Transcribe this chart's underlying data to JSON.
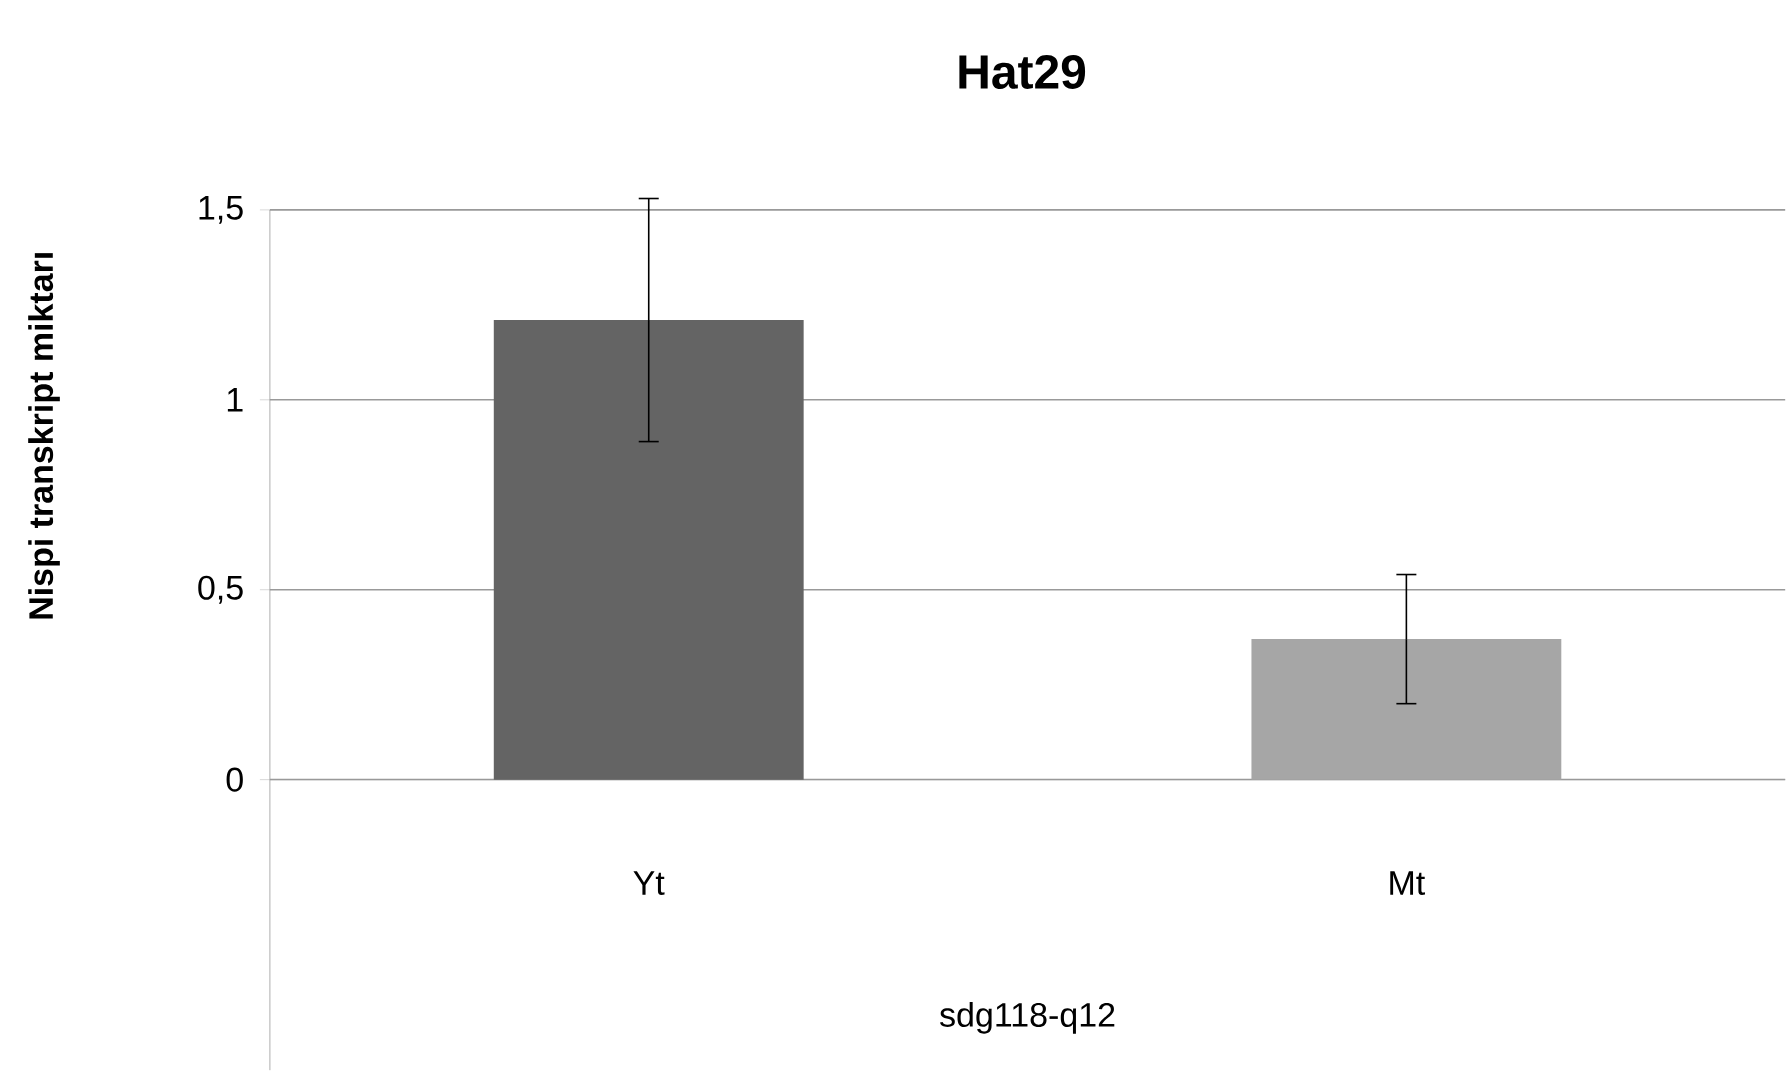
{
  "chart_data": {
    "type": "bar",
    "title": "Hat29",
    "xlabel": "sdg118-q12",
    "ylabel": "Nispi transkript miktarı",
    "categories": [
      "Yt",
      "Mt"
    ],
    "values": [
      1.21,
      0.37
    ],
    "errors": [
      0.32,
      0.17
    ],
    "colors": [
      "#646464",
      "#a6a6a6"
    ],
    "ylim": [
      0,
      1.5
    ],
    "yticks": [
      0,
      {
        "value": 0.5,
        "label": "0,5"
      },
      1,
      {
        "value": 1.5,
        "label": "1,5"
      }
    ],
    "grid": "y"
  }
}
